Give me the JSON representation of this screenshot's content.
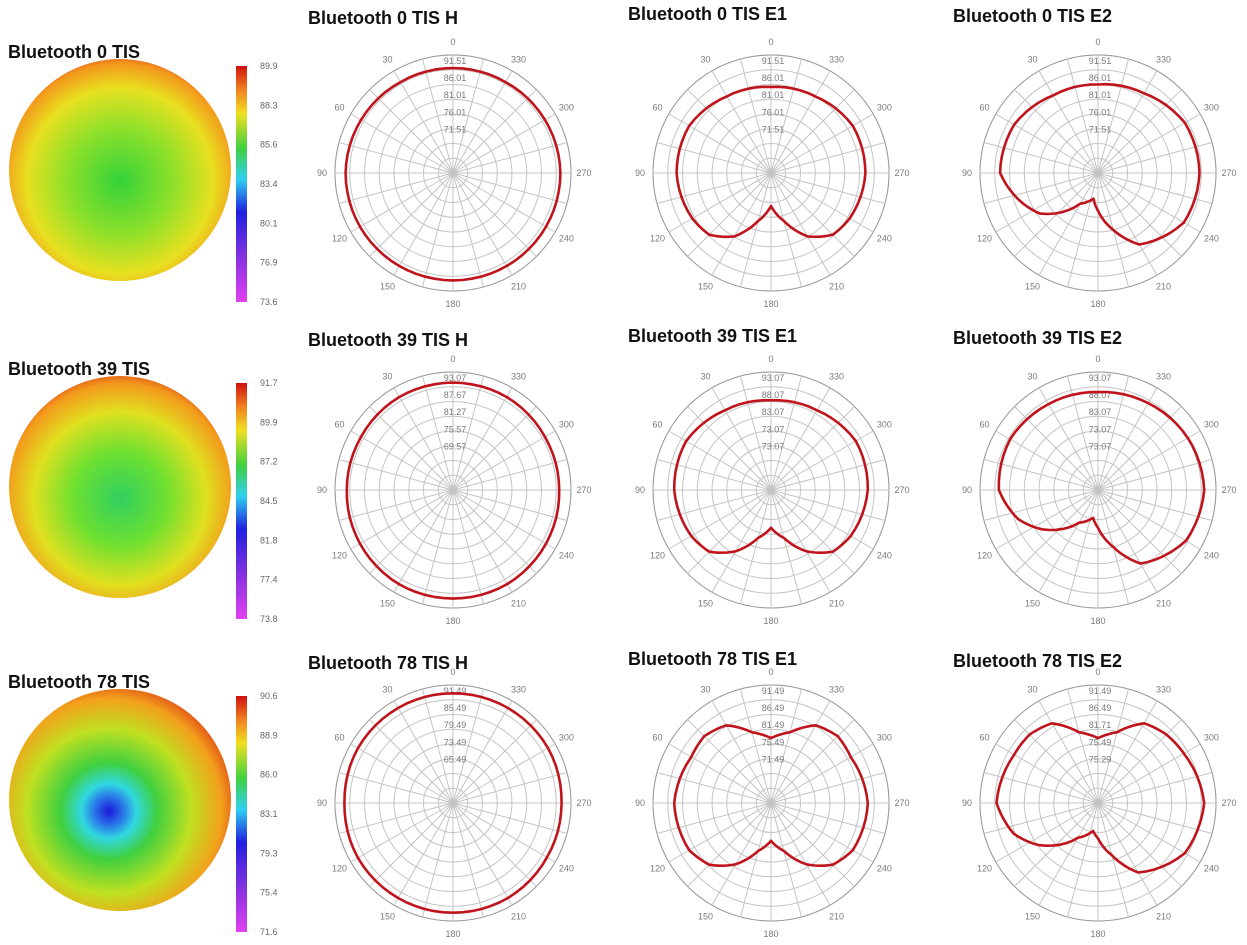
{
  "chart_data": [
    {
      "type": "heatmap",
      "title": "Bluetooth 0 TIS",
      "colorbar_ticks": [
        "89.9",
        "88.3",
        "85.6",
        "83.4",
        "80.1",
        "76.9",
        "73.6"
      ],
      "center_value": 84.5,
      "edge_value": 89.9
    },
    {
      "type": "polar",
      "title": "Bluetooth 0 TIS H",
      "angle_ticks": [
        "0",
        "30",
        "60",
        "90",
        "120",
        "150",
        "180",
        "210",
        "240",
        "270",
        "300",
        "330"
      ],
      "radial_ticks": [
        "91.51",
        "86.01",
        "81.01",
        "76.01",
        "71.51"
      ],
      "series": [
        {
          "theta": [
            0,
            30,
            60,
            90,
            120,
            150,
            180,
            210,
            240,
            270,
            300,
            330
          ],
          "r": [
            0.89,
            0.89,
            0.9,
            0.91,
            0.91,
            0.91,
            0.91,
            0.91,
            0.91,
            0.91,
            0.9,
            0.89
          ]
        }
      ]
    },
    {
      "type": "polar",
      "title": "Bluetooth 0 TIS E1",
      "angle_ticks": [
        "0",
        "30",
        "60",
        "90",
        "120",
        "150",
        "180",
        "210",
        "240",
        "270",
        "300",
        "330"
      ],
      "radial_ticks": [
        "91.51",
        "86.01",
        "81.01",
        "76.01",
        "71.51"
      ],
      "series": [
        {
          "theta": [
            0,
            30,
            60,
            90,
            120,
            135,
            150,
            165,
            180,
            195,
            210,
            225,
            240,
            270,
            300,
            330
          ],
          "r": [
            0.73,
            0.75,
            0.8,
            0.8,
            0.77,
            0.74,
            0.62,
            0.42,
            0.28,
            0.42,
            0.62,
            0.74,
            0.77,
            0.8,
            0.8,
            0.75
          ]
        }
      ]
    },
    {
      "type": "polar",
      "title": "Bluetooth 0 TIS E2",
      "angle_ticks": [
        "0",
        "30",
        "60",
        "90",
        "120",
        "150",
        "180",
        "210",
        "240",
        "270",
        "300",
        "330"
      ],
      "radial_ticks": [
        "91.51",
        "86.01",
        "81.01",
        "76.01",
        "71.51"
      ],
      "series": [
        {
          "theta": [
            0,
            30,
            60,
            90,
            110,
            125,
            150,
            170,
            180,
            195,
            210,
            240,
            270,
            300,
            330
          ],
          "r": [
            0.75,
            0.76,
            0.82,
            0.83,
            0.7,
            0.6,
            0.3,
            0.22,
            0.32,
            0.5,
            0.7,
            0.84,
            0.86,
            0.85,
            0.78
          ]
        }
      ]
    },
    {
      "type": "heatmap",
      "title": "Bluetooth 39 TIS",
      "colorbar_ticks": [
        "91.7",
        "89.9",
        "87.2",
        "84.5",
        "81.8",
        "77.4",
        "73.8"
      ],
      "center_value": 86.5,
      "edge_value": 91.7
    },
    {
      "type": "polar",
      "title": "Bluetooth 39 TIS H",
      "angle_ticks": [
        "0",
        "30",
        "60",
        "90",
        "120",
        "150",
        "180",
        "210",
        "240",
        "270",
        "300",
        "330"
      ],
      "radial_ticks": [
        "93.07",
        "87.67",
        "81.27",
        "75.57",
        "69.57"
      ],
      "series": [
        {
          "theta": [
            0,
            30,
            60,
            90,
            120,
            150,
            180,
            210,
            240,
            270,
            300,
            330
          ],
          "r": [
            0.91,
            0.91,
            0.9,
            0.9,
            0.91,
            0.92,
            0.92,
            0.92,
            0.91,
            0.9,
            0.9,
            0.91
          ]
        }
      ]
    },
    {
      "type": "polar",
      "title": "Bluetooth 39 TIS E1",
      "angle_ticks": [
        "0",
        "30",
        "60",
        "90",
        "120",
        "150",
        "180",
        "210",
        "240",
        "270",
        "300",
        "330"
      ],
      "radial_ticks": [
        "93.07",
        "88.07",
        "83.07",
        "73.07",
        "73.07"
      ],
      "series": [
        {
          "theta": [
            0,
            30,
            60,
            90,
            120,
            135,
            150,
            165,
            180,
            195,
            210,
            225,
            240,
            270,
            300,
            330
          ],
          "r": [
            0.76,
            0.78,
            0.83,
            0.82,
            0.78,
            0.74,
            0.6,
            0.42,
            0.32,
            0.42,
            0.6,
            0.74,
            0.78,
            0.82,
            0.83,
            0.78
          ]
        }
      ]
    },
    {
      "type": "polar",
      "title": "Bluetooth 39 TIS E2",
      "angle_ticks": [
        "0",
        "30",
        "60",
        "90",
        "120",
        "150",
        "180",
        "210",
        "240",
        "270",
        "300",
        "330"
      ],
      "radial_ticks": [
        "93.07",
        "88.07",
        "83.07",
        "73.07",
        "73.07"
      ],
      "series": [
        {
          "theta": [
            0,
            30,
            60,
            90,
            110,
            125,
            150,
            170,
            180,
            195,
            210,
            240,
            270,
            300,
            330
          ],
          "r": [
            0.83,
            0.84,
            0.86,
            0.84,
            0.72,
            0.58,
            0.32,
            0.24,
            0.32,
            0.5,
            0.72,
            0.86,
            0.9,
            0.88,
            0.85
          ]
        }
      ]
    },
    {
      "type": "heatmap",
      "title": "Bluetooth 78 TIS",
      "colorbar_ticks": [
        "90.6",
        "88.9",
        "86.0",
        "83.1",
        "79.3",
        "75.4",
        "71.6"
      ],
      "center_value": 79.0,
      "edge_value": 90.6
    },
    {
      "type": "polar",
      "title": "Bluetooth 78 TIS H",
      "angle_ticks": [
        "0",
        "30",
        "60",
        "90",
        "120",
        "150",
        "180",
        "210",
        "240",
        "270",
        "300",
        "330"
      ],
      "radial_ticks": [
        "91.49",
        "85.49",
        "79.49",
        "73.49",
        "65.49"
      ],
      "series": [
        {
          "theta": [
            0,
            30,
            60,
            90,
            120,
            150,
            180,
            210,
            240,
            270,
            300,
            330
          ],
          "r": [
            0.93,
            0.93,
            0.93,
            0.92,
            0.93,
            0.93,
            0.93,
            0.93,
            0.92,
            0.92,
            0.93,
            0.93
          ]
        }
      ]
    },
    {
      "type": "polar",
      "title": "Bluetooth 78 TIS E1",
      "angle_ticks": [
        "0",
        "30",
        "60",
        "90",
        "120",
        "150",
        "180",
        "210",
        "240",
        "270",
        "300",
        "330"
      ],
      "radial_ticks": [
        "91.49",
        "86.49",
        "81.49",
        "75.49",
        "71.49"
      ],
      "series": [
        {
          "theta": [
            0,
            15,
            30,
            45,
            60,
            90,
            120,
            135,
            150,
            165,
            180,
            195,
            210,
            225,
            240,
            270,
            300,
            315,
            330,
            345
          ],
          "r": [
            0.55,
            0.62,
            0.76,
            0.8,
            0.78,
            0.82,
            0.8,
            0.74,
            0.6,
            0.42,
            0.32,
            0.42,
            0.6,
            0.74,
            0.8,
            0.82,
            0.78,
            0.8,
            0.76,
            0.62
          ]
        }
      ]
    },
    {
      "type": "polar",
      "title": "Bluetooth 78 TIS E2",
      "angle_ticks": [
        "0",
        "30",
        "60",
        "90",
        "120",
        "150",
        "180",
        "210",
        "240",
        "270",
        "300",
        "330"
      ],
      "radial_ticks": [
        "91.49",
        "86.49",
        "81.71",
        "75.49",
        "75.29"
      ],
      "series": [
        {
          "theta": [
            0,
            15,
            30,
            45,
            60,
            90,
            110,
            125,
            150,
            170,
            180,
            195,
            210,
            240,
            270,
            300,
            315,
            330,
            345
          ],
          "r": [
            0.55,
            0.62,
            0.78,
            0.82,
            0.82,
            0.86,
            0.76,
            0.62,
            0.34,
            0.24,
            0.3,
            0.46,
            0.68,
            0.85,
            0.9,
            0.84,
            0.82,
            0.78,
            0.62
          ]
        }
      ]
    }
  ]
}
